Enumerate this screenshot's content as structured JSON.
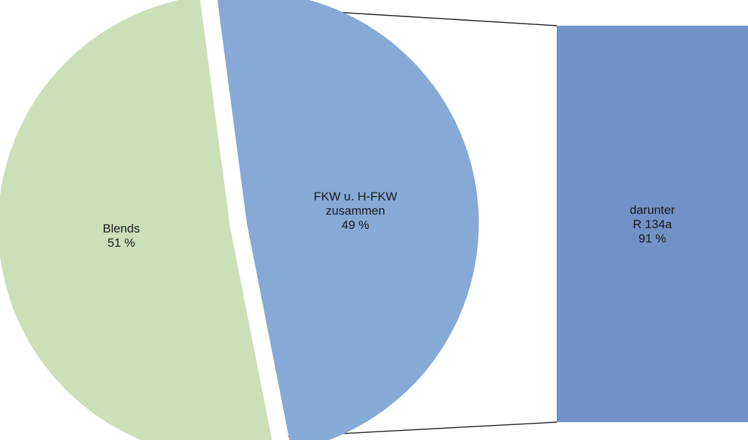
{
  "chart_data": {
    "type": "pie",
    "variant": "pie-of-bar",
    "pie": {
      "slices": [
        {
          "label_lines": [
            "Blends",
            "51 %"
          ],
          "value": 51,
          "color": "#cddfb8"
        },
        {
          "label_lines": [
            "FKW u. H-FKW",
            "zusammen",
            "49 %"
          ],
          "value": 49,
          "color": "#86a9d6"
        }
      ]
    },
    "bar": {
      "label_lines": [
        "darunter",
        "R 134a",
        "91 %"
      ],
      "value": 91,
      "color": "#7291c7"
    },
    "connector_color": "#1a1a1a"
  }
}
